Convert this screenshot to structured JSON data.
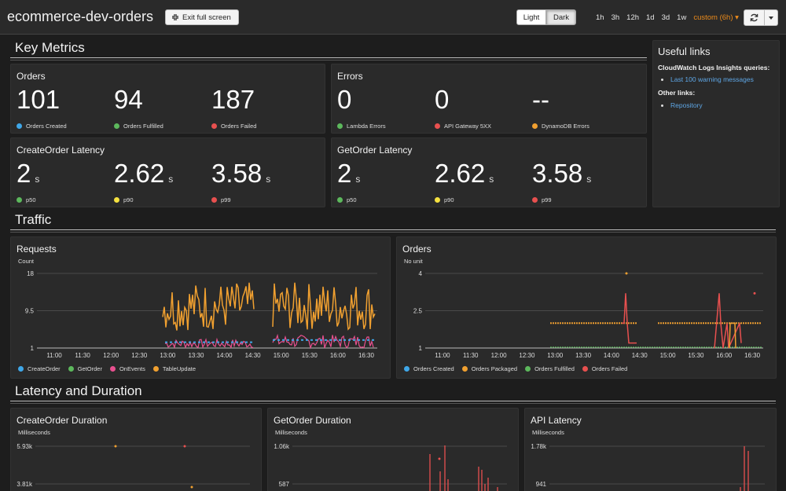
{
  "header": {
    "title": "ecommerce-dev-orders",
    "exit_fullscreen_label": "Exit full screen",
    "theme_light_label": "Light",
    "theme_dark_label": "Dark",
    "time_ranges": [
      "1h",
      "3h",
      "12h",
      "1d",
      "3d",
      "1w"
    ],
    "custom_range_label": "custom (6h)",
    "custom_range_caret": "▾"
  },
  "sections": {
    "key_metrics": "Key Metrics",
    "traffic": "Traffic",
    "latency": "Latency and Duration"
  },
  "widgets": {
    "orders": {
      "title": "Orders",
      "metrics": [
        {
          "value": "101",
          "label": "Orders Created",
          "color": "#3fa7e8"
        },
        {
          "value": "94",
          "label": "Orders Fulfilled",
          "color": "#5cb85c"
        },
        {
          "value": "187",
          "label": "Orders Failed",
          "color": "#e8504f"
        }
      ]
    },
    "errors": {
      "title": "Errors",
      "metrics": [
        {
          "value": "0",
          "label": "Lambda Errors",
          "color": "#5cb85c"
        },
        {
          "value": "0",
          "label": "API Gateway 5XX",
          "color": "#e8504f"
        },
        {
          "value": "--",
          "label": "DynamoDB Errors",
          "color": "#f0a030"
        }
      ]
    },
    "create_latency": {
      "title": "CreateOrder Latency",
      "metrics": [
        {
          "value": "2",
          "unit": "s",
          "label": "p50",
          "color": "#5cb85c"
        },
        {
          "value": "2.62",
          "unit": "s",
          "label": "p90",
          "color": "#f5e140"
        },
        {
          "value": "3.58",
          "unit": "s",
          "label": "p99",
          "color": "#e8504f"
        }
      ]
    },
    "get_latency": {
      "title": "GetOrder Latency",
      "metrics": [
        {
          "value": "2",
          "unit": "s",
          "label": "p50",
          "color": "#5cb85c"
        },
        {
          "value": "2.62",
          "unit": "s",
          "label": "p90",
          "color": "#f5e140"
        },
        {
          "value": "3.58",
          "unit": "s",
          "label": "p99",
          "color": "#e8504f"
        }
      ]
    },
    "links": {
      "title": "Useful links",
      "insights_label": "CloudWatch Logs Insights queries:",
      "insights_link": "Last 100 warning messages",
      "other_label": "Other links:",
      "other_link": "Repository"
    },
    "requests_title": "Requests",
    "orders_chart_title": "Orders",
    "create_duration_title": "CreateOrder Duration",
    "get_duration_title": "GetOrder Duration",
    "api_latency_title": "API Latency"
  },
  "chart_data": [
    {
      "type": "line",
      "id": "requests",
      "title": "Requests",
      "ylabel": "Count",
      "yticks": [
        "18",
        "9.5",
        "1"
      ],
      "ylim": [
        1,
        18
      ],
      "x": [
        "11:00",
        "11:30",
        "12:00",
        "12:30",
        "13:00",
        "13:30",
        "14:00",
        "14:30",
        "15:00",
        "15:30",
        "16:00",
        "16:30"
      ],
      "series": [
        {
          "name": "CreateOrder",
          "color": "#3fa7e8"
        },
        {
          "name": "GetOrder",
          "color": "#5cb85c"
        },
        {
          "name": "OnEvents",
          "color": "#e8508f"
        },
        {
          "name": "TableUpdate",
          "color": "#f0a030"
        }
      ]
    },
    {
      "type": "line",
      "id": "orders",
      "title": "Orders",
      "ylabel": "No unit",
      "yticks": [
        "4",
        "2.5",
        "1"
      ],
      "ylim": [
        1,
        4
      ],
      "x": [
        "11:00",
        "11:30",
        "12:00",
        "12:30",
        "13:00",
        "13:30",
        "14:00",
        "14:30",
        "15:00",
        "15:30",
        "16:00",
        "16:30"
      ],
      "series": [
        {
          "name": "Orders Created",
          "color": "#3fa7e8"
        },
        {
          "name": "Orders Packaged",
          "color": "#f0a030"
        },
        {
          "name": "Orders Fulfilled",
          "color": "#5cb85c"
        },
        {
          "name": "Orders Failed",
          "color": "#e8504f"
        }
      ]
    },
    {
      "type": "line",
      "id": "create_duration",
      "title": "CreateOrder Duration",
      "ylabel": "Milliseconds",
      "yticks": [
        "5.93k",
        "3.81k"
      ]
    },
    {
      "type": "line",
      "id": "get_duration",
      "title": "GetOrder Duration",
      "ylabel": "Milliseconds",
      "yticks": [
        "1.06k",
        "587"
      ]
    },
    {
      "type": "line",
      "id": "api_latency",
      "title": "API Latency",
      "ylabel": "Milliseconds",
      "yticks": [
        "1.78k",
        "941"
      ]
    }
  ]
}
